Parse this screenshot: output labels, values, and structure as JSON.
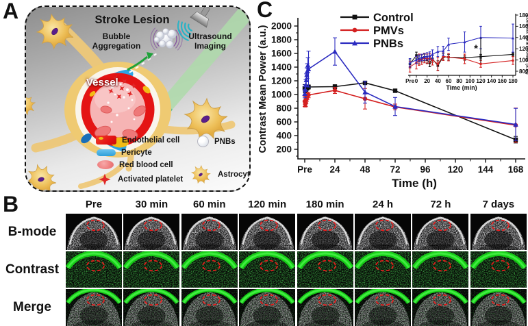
{
  "figure": {
    "panel_a": {
      "label": "A",
      "title": "Stroke Lesion",
      "vessel_label": "Vessel",
      "bubble_aggregation": {
        "line1": "Bubble",
        "line2": "Aggregation"
      },
      "ultrasound_imaging": {
        "line1": "Ultrasound",
        "line2": "Imaging"
      },
      "legend": [
        {
          "label": "Endothelial cell",
          "color": "#e41414"
        },
        {
          "label": "Pericyte",
          "color": "#35aae0"
        },
        {
          "label": "Red blood cell",
          "color": "#ee7d7d"
        },
        {
          "label": "Activated platelet",
          "color": "#e02828"
        },
        {
          "label": "PNBs",
          "color": "#f2f4f8"
        },
        {
          "label": "Astrocyte",
          "color": "#eec05a"
        }
      ]
    },
    "panel_b": {
      "label": "B",
      "columns": [
        "Pre",
        "30 min",
        "60 min",
        "120 min",
        "180 min",
        "24 h",
        "72 h",
        "7 days"
      ],
      "rows": [
        "B-mode",
        "Contrast",
        "Merge"
      ],
      "annotation_color": "#ea1c1c",
      "contrast_green": "#16d416"
    },
    "panel_c": {
      "label": "C"
    }
  },
  "chart_data": [
    {
      "id": "main",
      "type": "line",
      "title": "",
      "xlabel": "Time (h)",
      "ylabel": "Contrast Mean Power (a.u.)",
      "xticks": [
        "Pre",
        "24",
        "48",
        "72",
        "96",
        "120",
        "144",
        "168"
      ],
      "xtick_hours": [
        0,
        24,
        48,
        72,
        96,
        120,
        144,
        168
      ],
      "yticks": [
        200,
        400,
        600,
        800,
        1000,
        1200,
        1400,
        1600,
        1800,
        2000
      ],
      "ylim": [
        100,
        2050
      ],
      "legend_position": "top-left-inside",
      "series": [
        {
          "name": "Control",
          "color": "#111111",
          "marker": "square",
          "points": [
            [
              0,
              1090,
              55
            ],
            [
              0.6,
              1070,
              45
            ],
            [
              1.2,
              1085,
              40
            ],
            [
              2,
              1100,
              35
            ],
            [
              3,
              1110,
              30
            ],
            [
              24,
              1115,
              28
            ],
            [
              48,
              1170,
              22
            ],
            [
              72,
              1055,
              16
            ],
            [
              168,
              340,
              48
            ]
          ]
        },
        {
          "name": "PMVs",
          "color": "#d42020",
          "marker": "circle",
          "points": [
            [
              0,
              900,
              75
            ],
            [
              0.4,
              858,
              40
            ],
            [
              0.8,
              882,
              55
            ],
            [
              1.2,
              928,
              60
            ],
            [
              1.6,
              952,
              50
            ],
            [
              2,
              972,
              45
            ],
            [
              3,
              993,
              40
            ],
            [
              24,
              1060,
              45
            ],
            [
              48,
              938,
              150
            ],
            [
              72,
              818,
              42
            ],
            [
              168,
              552,
              250
            ]
          ]
        },
        {
          "name": "PNBs",
          "color": "#2b2bc0",
          "marker": "triangle",
          "points": [
            [
              0,
              1012,
              60
            ],
            [
              0.4,
              1072,
              70
            ],
            [
              0.8,
              1140,
              80
            ],
            [
              1.2,
              1212,
              90
            ],
            [
              1.6,
              1288,
              100
            ],
            [
              2,
              1342,
              108
            ],
            [
              2.5,
              1428,
              108
            ],
            [
              3,
              1372,
              262
            ],
            [
              24,
              1628,
              200
            ],
            [
              48,
              1035,
              160
            ],
            [
              72,
              825,
              132
            ],
            [
              168,
              563,
              235
            ]
          ]
        }
      ]
    },
    {
      "id": "inset",
      "type": "line",
      "xlabel": "Time (min)",
      "ylabel": "Contrast Mean Power (a.u.)",
      "ylabel_side": "right",
      "xticks": {
        "values": [
          -12,
          0,
          20,
          40,
          60,
          80,
          100,
          120,
          140,
          160,
          180
        ],
        "labels": [
          "Pre",
          "0",
          "20",
          "40",
          "60",
          "80",
          "100",
          "120",
          "140",
          "160",
          "180"
        ]
      },
      "yticks": [
        800,
        1000,
        1200,
        1400,
        1600,
        1800
      ],
      "ylim": [
        750,
        1850
      ],
      "x": [
        -12,
        0,
        5,
        10,
        15,
        20,
        25,
        30,
        40,
        50,
        60,
        90,
        120,
        180
      ],
      "series": [
        {
          "name": "Control",
          "color": "#111111",
          "marker": "square",
          "values": [
            930,
            1080,
            1000,
            1030,
            1045,
            1005,
            950,
            1020,
            900,
            1055,
            1050,
            1040,
            1060,
            1100
          ],
          "err": [
            70,
            60,
            70,
            65,
            60,
            60,
            70,
            60,
            85,
            55,
            50,
            45,
            40,
            35
          ]
        },
        {
          "name": "PMVs",
          "color": "#d42020",
          "marker": "circle",
          "values": [
            880,
            950,
            1005,
            1010,
            1035,
            1020,
            1030,
            1000,
            930,
            1065,
            1050,
            1020,
            930,
            990
          ],
          "err": [
            95,
            110,
            100,
            90,
            85,
            85,
            80,
            90,
            120,
            75,
            65,
            85,
            60,
            70
          ]
        },
        {
          "name": "PNBs",
          "color": "#2b2bc0",
          "marker": "triangle",
          "values": [
            950,
            1000,
            1030,
            1045,
            1055,
            1065,
            1075,
            1100,
            1150,
            1160,
            1280,
            1320,
            1400,
            1390
          ],
          "err": [
            75,
            65,
            60,
            58,
            60,
            65,
            70,
            80,
            90,
            85,
            110,
            180,
            200,
            250
          ]
        }
      ],
      "significance": {
        "x": 120,
        "y1": 950,
        "y2": 1400,
        "label": "*"
      }
    }
  ]
}
